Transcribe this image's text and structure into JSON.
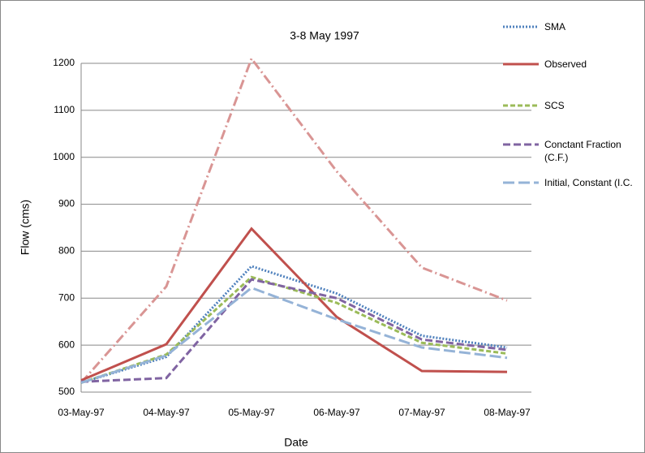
{
  "chart_data": {
    "type": "line",
    "title": "3-8 May 1997",
    "x_label": "Date",
    "y_label": "Flow (cms)",
    "categories": [
      "03-May-97",
      "04-May-97",
      "05-May-97",
      "06-May-97",
      "07-May-97",
      "08-May-97"
    ],
    "ylim": [
      500,
      1200
    ],
    "yticks": [
      500,
      600,
      700,
      800,
      900,
      1000,
      1100,
      1200
    ],
    "grid": true,
    "series": [
      {
        "color": "#d99594",
        "dash": "12 4 2 4",
        "values": [
          520,
          725,
          1210,
          970,
          765,
          695
        ]
      },
      {
        "name": "SMA",
        "color": "#4f81bd",
        "dash": "2 2",
        "values": [
          520,
          575,
          768,
          710,
          620,
          595
        ]
      },
      {
        "name": "Observed",
        "color": "#c0504d",
        "dash": "",
        "values": [
          525,
          602,
          848,
          660,
          545,
          543
        ]
      },
      {
        "name": "SCS",
        "color": "#9bbb59",
        "dash": "6 3",
        "values": [
          520,
          580,
          745,
          690,
          605,
          582
        ]
      },
      {
        "name": "Conctant Fraction (C.F.)",
        "color": "#8064a2",
        "dash": "9 4",
        "values": [
          522,
          530,
          740,
          700,
          612,
          590
        ]
      },
      {
        "name": "Initial, Constant (I.C.",
        "color": "#95b3d7",
        "dash": "14 5",
        "values": [
          520,
          578,
          722,
          655,
          595,
          573
        ]
      }
    ]
  }
}
